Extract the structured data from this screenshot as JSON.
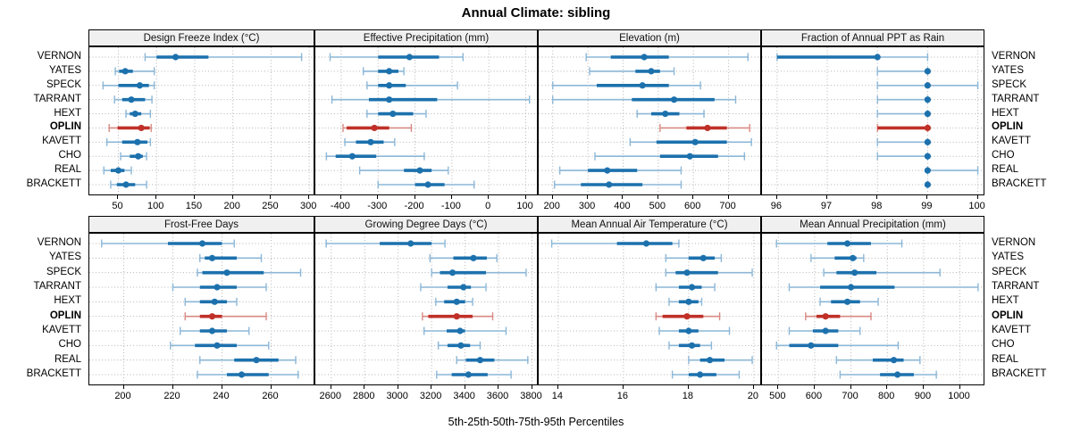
{
  "title": "Annual Climate: sibling",
  "caption": "5th-25th-50th-75th-95th Percentiles",
  "stations": [
    "VERNON",
    "YATES",
    "SPECK",
    "TARRANT",
    "HEXT",
    "OPLIN",
    "KAVETT",
    "CHO",
    "REAL",
    "BRACKETT"
  ],
  "highlight_station": "OPLIN",
  "colors": {
    "series_blue": "#1c71ad",
    "series_blue_light": "#8cb7d7",
    "highlight_red": "#c03028",
    "highlight_red_light": "#d98a84",
    "grid": "#b5b5b5",
    "strip_bg": "#f0f0f0",
    "panel_border": "#000000"
  },
  "chart_data": {
    "type": "dotplot-percentile-intervals",
    "percentile_levels": [
      5,
      25,
      50,
      75,
      95
    ],
    "panels": [
      {
        "title": "Design Freeze Index (°C)",
        "row": 0,
        "col": 0,
        "xlim": [
          12,
          308
        ],
        "ticks": [
          50,
          100,
          150,
          200,
          250,
          300
        ],
        "values": {
          "VERNON": [
            85,
            100,
            125,
            168,
            290
          ],
          "YATES": [
            46,
            51,
            59,
            69,
            97
          ],
          "SPECK": [
            30,
            50,
            78,
            90,
            97
          ],
          "TARRANT": [
            45,
            55,
            67,
            85,
            94
          ],
          "HEXT": [
            60,
            65,
            72,
            80,
            92
          ],
          "OPLIN": [
            38,
            49,
            80,
            91,
            93
          ],
          "KAVETT": [
            35,
            55,
            75,
            88,
            92
          ],
          "CHO": [
            53,
            65,
            76,
            82,
            87
          ],
          "REAL": [
            31,
            40,
            50,
            58,
            67
          ],
          "BRACKETT": [
            40,
            48,
            60,
            72,
            87
          ]
        }
      },
      {
        "title": "Effective Precipitation (mm)",
        "row": 0,
        "col": 1,
        "xlim": [
          -470,
          135
        ],
        "ticks": [
          -400,
          -300,
          -200,
          -100,
          0,
          100
        ],
        "values": {
          "VERNON": [
            -430,
            -300,
            -215,
            -135,
            -70
          ],
          "YATES": [
            -340,
            -300,
            -270,
            -245,
            -230
          ],
          "SPECK": [
            -330,
            -300,
            -270,
            -225,
            -85
          ],
          "TARRANT": [
            -425,
            -325,
            -270,
            -140,
            110
          ],
          "HEXT": [
            -330,
            -300,
            -260,
            -205,
            -170
          ],
          "OPLIN": [
            -395,
            -385,
            -310,
            -270,
            -210
          ],
          "KAVETT": [
            -390,
            -360,
            -320,
            -285,
            -255
          ],
          "CHO": [
            -440,
            -415,
            -370,
            -305,
            -175
          ],
          "REAL": [
            -350,
            -230,
            -187,
            -155,
            -110
          ],
          "BRACKETT": [
            -300,
            -200,
            -165,
            -120,
            -40
          ]
        }
      },
      {
        "title": "Elevation (m)",
        "row": 0,
        "col": 2,
        "xlim": [
          160,
          795
        ],
        "ticks": [
          200,
          300,
          400,
          500,
          600,
          700
        ],
        "values": {
          "VERNON": [
            295,
            365,
            460,
            530,
            755
          ],
          "YATES": [
            305,
            435,
            480,
            505,
            545
          ],
          "SPECK": [
            200,
            325,
            455,
            530,
            620
          ],
          "TARRANT": [
            200,
            425,
            545,
            660,
            720
          ],
          "HEXT": [
            440,
            480,
            520,
            560,
            630
          ],
          "OPLIN": [
            505,
            580,
            640,
            695,
            760
          ],
          "KAVETT": [
            420,
            495,
            605,
            695,
            765
          ],
          "CHO": [
            320,
            505,
            590,
            670,
            745
          ],
          "REAL": [
            220,
            300,
            355,
            440,
            565
          ],
          "BRACKETT": [
            205,
            280,
            360,
            455,
            565
          ]
        }
      },
      {
        "title": "Fraction of Annual PPT as Rain",
        "row": 0,
        "col": 3,
        "xlim": [
          95.7,
          100.15
        ],
        "ticks": [
          96,
          97,
          98,
          99,
          100
        ],
        "values": {
          "VERNON": [
            96,
            96,
            98,
            98,
            99
          ],
          "YATES": [
            98,
            99,
            99,
            99,
            99
          ],
          "SPECK": [
            98,
            99,
            99,
            99,
            100
          ],
          "TARRANT": [
            98,
            99,
            99,
            99,
            99
          ],
          "HEXT": [
            98,
            99,
            99,
            99,
            99
          ],
          "OPLIN": [
            98,
            98,
            99,
            99,
            99
          ],
          "KAVETT": [
            98,
            99,
            99,
            99,
            99
          ],
          "CHO": [
            98,
            99,
            99,
            99,
            99
          ],
          "REAL": [
            99,
            99,
            99,
            99,
            100
          ],
          "BRACKETT": [
            99,
            99,
            99,
            99,
            99
          ]
        }
      },
      {
        "title": "Frost-Free Days",
        "row": 1,
        "col": 0,
        "xlim": [
          186,
          278
        ],
        "ticks": [
          200,
          220,
          240,
          260
        ],
        "values": {
          "VERNON": [
            191,
            218,
            232,
            240,
            245
          ],
          "YATES": [
            231,
            233,
            236,
            246,
            256
          ],
          "SPECK": [
            230,
            232,
            242,
            257,
            272
          ],
          "TARRANT": [
            220,
            231,
            238,
            246,
            258
          ],
          "HEXT": [
            225,
            231,
            237,
            242,
            246
          ],
          "OPLIN": [
            225,
            231,
            236,
            240,
            258
          ],
          "KAVETT": [
            223,
            231,
            236,
            242,
            251
          ],
          "CHO": [
            219,
            229,
            238,
            246,
            259
          ],
          "REAL": [
            231,
            245,
            254,
            263,
            270
          ],
          "BRACKETT": [
            230,
            242,
            248,
            259,
            271
          ]
        }
      },
      {
        "title": "Growing Degree Days (°C)",
        "row": 1,
        "col": 1,
        "xlim": [
          2505,
          3840
        ],
        "ticks": [
          2600,
          2800,
          3000,
          3200,
          3400,
          3600,
          3800
        ],
        "values": {
          "VERNON": [
            2570,
            2890,
            3075,
            3200,
            3280
          ],
          "YATES": [
            3190,
            3330,
            3450,
            3530,
            3590
          ],
          "SPECK": [
            3200,
            3250,
            3325,
            3525,
            3765
          ],
          "TARRANT": [
            3135,
            3295,
            3390,
            3435,
            3525
          ],
          "HEXT": [
            3225,
            3275,
            3350,
            3400,
            3445
          ],
          "OPLIN": [
            3145,
            3180,
            3350,
            3445,
            3565
          ],
          "KAVETT": [
            3155,
            3290,
            3370,
            3400,
            3645
          ],
          "CHO": [
            3240,
            3295,
            3375,
            3430,
            3490
          ],
          "REAL": [
            3350,
            3405,
            3490,
            3575,
            3775
          ],
          "BRACKETT": [
            3230,
            3320,
            3420,
            3535,
            3675
          ]
        }
      },
      {
        "title": "Mean Annual Air Temperature (°C)",
        "row": 1,
        "col": 2,
        "xlim": [
          13.4,
          20.25
        ],
        "ticks": [
          14,
          16,
          18,
          20
        ],
        "values": {
          "VERNON": [
            13.8,
            15.8,
            16.7,
            17.5,
            17.7
          ],
          "YATES": [
            17.3,
            18.0,
            18.45,
            18.8,
            19.0
          ],
          "SPECK": [
            17.3,
            17.6,
            17.95,
            18.9,
            19.95
          ],
          "TARRANT": [
            17.0,
            17.7,
            18.1,
            18.4,
            18.8
          ],
          "HEXT": [
            17.4,
            17.7,
            18.0,
            18.3,
            18.4
          ],
          "OPLIN": [
            17.0,
            17.2,
            17.95,
            18.45,
            18.95
          ],
          "KAVETT": [
            17.1,
            17.7,
            18.0,
            18.3,
            19.25
          ],
          "CHO": [
            17.4,
            17.7,
            18.1,
            18.35,
            18.7
          ],
          "REAL": [
            18.0,
            18.35,
            18.65,
            19.1,
            19.95
          ],
          "BRACKETT": [
            17.5,
            18.0,
            18.35,
            18.85,
            19.55
          ]
        }
      },
      {
        "title": "Mean Annual Precipitation (mm)",
        "row": 1,
        "col": 3,
        "xlim": [
          455,
          1070
        ],
        "ticks": [
          500,
          600,
          700,
          800,
          900,
          1000
        ],
        "values": {
          "VERNON": [
            495,
            635,
            690,
            755,
            840
          ],
          "YATES": [
            590,
            655,
            705,
            715,
            735
          ],
          "SPECK": [
            625,
            660,
            710,
            770,
            945
          ],
          "TARRANT": [
            530,
            615,
            700,
            820,
            1050
          ],
          "HEXT": [
            615,
            645,
            690,
            725,
            775
          ],
          "OPLIN": [
            575,
            605,
            630,
            670,
            755
          ],
          "KAVETT": [
            530,
            595,
            630,
            665,
            725
          ],
          "CHO": [
            495,
            530,
            590,
            665,
            830
          ],
          "REAL": [
            660,
            760,
            818,
            845,
            890
          ],
          "BRACKETT": [
            670,
            780,
            828,
            873,
            935
          ]
        }
      }
    ]
  }
}
